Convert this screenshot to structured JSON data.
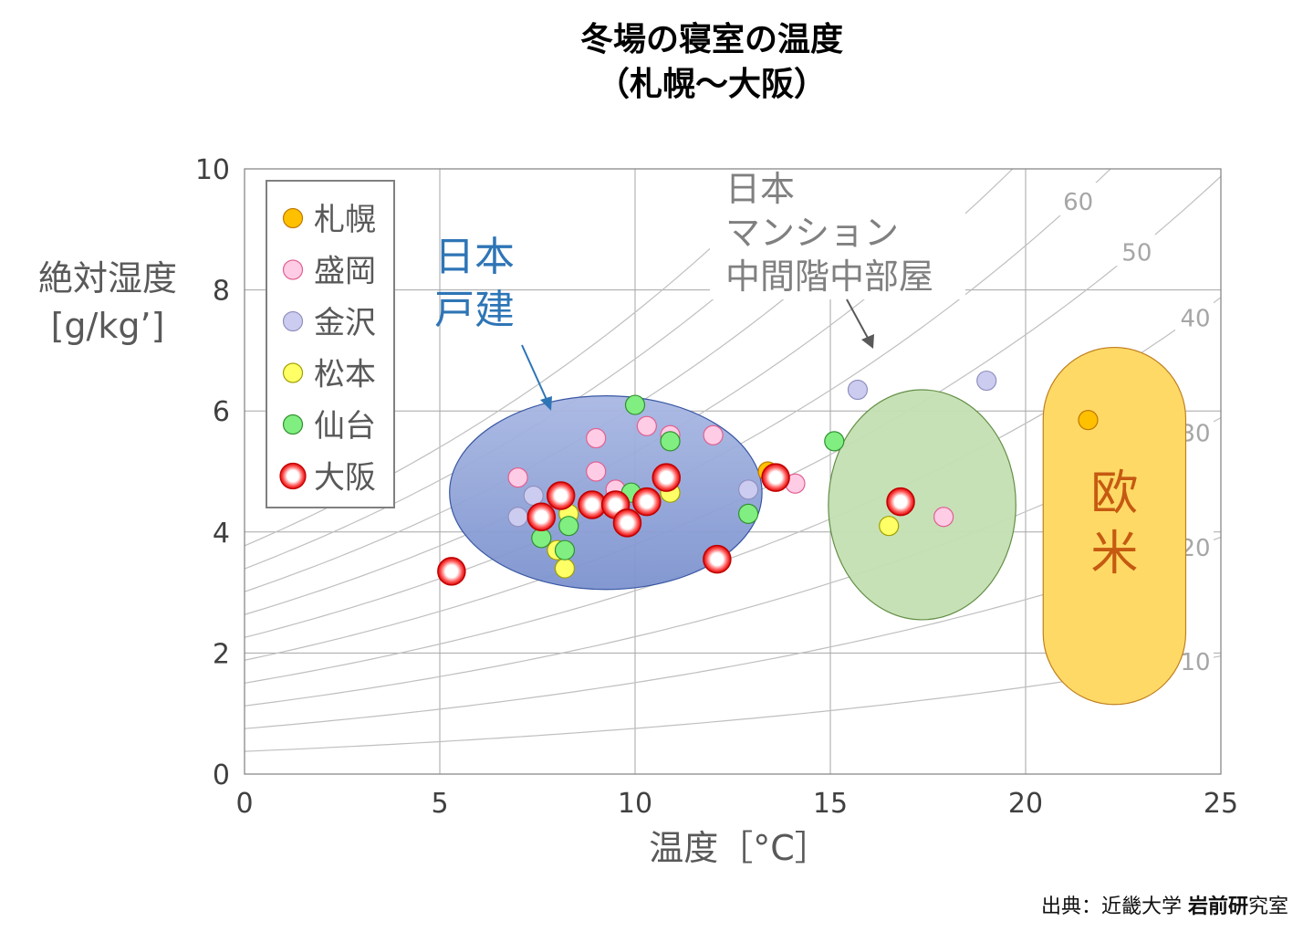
{
  "chart_data": {
    "type": "scatter",
    "title_line1": "冬場の寝室の温度",
    "title_line2": "（札幌～大阪）",
    "xlabel": "温度［°C］",
    "ylabel_line1": "絶対湿度",
    "ylabel_line2": "[g/kg’]",
    "xlim": [
      0,
      25
    ],
    "ylim": [
      0,
      10
    ],
    "x_ticks": [
      "0",
      "5",
      "10",
      "15",
      "20",
      "25"
    ],
    "y_ticks": [
      "0",
      "2",
      "4",
      "6",
      "8",
      "10"
    ],
    "rh_curves": [
      {
        "rh": 10,
        "label": "10"
      },
      {
        "rh": 20,
        "label": "20"
      },
      {
        "rh": 30,
        "label": "30"
      },
      {
        "rh": 40,
        "label": "40"
      },
      {
        "rh": 50,
        "label": "50"
      },
      {
        "rh": 60,
        "label": "60"
      },
      {
        "rh": 70,
        "label": ""
      },
      {
        "rh": 80,
        "label": ""
      },
      {
        "rh": 90,
        "label": ""
      },
      {
        "rh": 100,
        "label": ""
      }
    ],
    "series": [
      {
        "name": "札幌",
        "color": "#FFC000",
        "edge": "#C07800",
        "points": [
          [
            13.4,
            5.0
          ],
          [
            21.6,
            5.85
          ]
        ]
      },
      {
        "name": "盛岡",
        "color": "#FFCCE6",
        "edge": "#E06090",
        "points": [
          [
            7.0,
            4.9
          ],
          [
            9.0,
            5.55
          ],
          [
            9.0,
            5.0
          ],
          [
            9.5,
            4.7
          ],
          [
            10.3,
            5.75
          ],
          [
            10.9,
            5.6
          ],
          [
            12.0,
            5.6
          ],
          [
            14.1,
            4.8
          ],
          [
            17.9,
            4.25
          ]
        ]
      },
      {
        "name": "金沢",
        "color": "#CCCCF0",
        "edge": "#9090C0",
        "points": [
          [
            7.0,
            4.25
          ],
          [
            7.4,
            4.6
          ],
          [
            12.9,
            4.7
          ],
          [
            15.7,
            6.35
          ],
          [
            19.0,
            6.5
          ]
        ]
      },
      {
        "name": "松本",
        "color": "#FFFF66",
        "edge": "#A0A000",
        "points": [
          [
            8.0,
            3.7
          ],
          [
            8.2,
            3.4
          ],
          [
            8.3,
            4.3
          ],
          [
            10.9,
            4.65
          ],
          [
            16.5,
            4.1
          ]
        ]
      },
      {
        "name": "仙台",
        "color": "#80EE80",
        "edge": "#309030",
        "points": [
          [
            7.6,
            3.9
          ],
          [
            8.2,
            3.7
          ],
          [
            8.3,
            4.1
          ],
          [
            10.0,
            6.1
          ],
          [
            9.9,
            4.65
          ],
          [
            10.9,
            5.5
          ],
          [
            12.9,
            4.3
          ],
          [
            15.1,
            5.5
          ]
        ]
      },
      {
        "name": "大阪",
        "color": "#FF2020",
        "edge": "#C00000",
        "points": [
          [
            5.3,
            3.35
          ],
          [
            7.6,
            4.25
          ],
          [
            8.1,
            4.6
          ],
          [
            8.9,
            4.45
          ],
          [
            9.5,
            4.45
          ],
          [
            9.8,
            4.15
          ],
          [
            10.3,
            4.5
          ],
          [
            10.8,
            4.9
          ],
          [
            12.1,
            3.55
          ],
          [
            13.6,
            4.9
          ],
          [
            16.8,
            4.5
          ]
        ]
      }
    ],
    "regions": [
      {
        "label_lines": [
          "日本",
          "戸建"
        ],
        "shape": "ellipse",
        "cx": 9.25,
        "cy": 4.65,
        "rx": 4.0,
        "ry": 1.6,
        "fill": "#8FA3D6",
        "stroke": "#2F4F9F",
        "label_color": "#2E75B6"
      },
      {
        "label_lines": [
          "日本",
          "マンション",
          "中間階中部屋"
        ],
        "shape": "ellipse",
        "cx": 17.35,
        "cy": 4.45,
        "rx": 2.4,
        "ry": 1.9,
        "fill": "#C5E0B4",
        "stroke": "#5B8A3C",
        "label_color": "#808080"
      },
      {
        "label_lines": [
          "欧米"
        ],
        "shape": "capsule",
        "x0": 20.45,
        "x1": 24.1,
        "y0": 1.15,
        "y1": 7.05,
        "fill": "#FFD966",
        "stroke": "#C08020",
        "label_color": "#C55A11"
      }
    ],
    "legend_position": "top-left",
    "grid": true
  },
  "source": {
    "prefix": "出典：近畿大学 ",
    "bold": "岩前研",
    "suffix": "究室"
  }
}
